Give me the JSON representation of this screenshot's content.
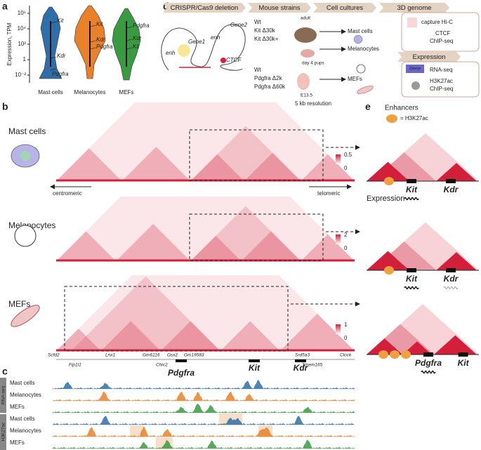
{
  "panel_labels": [
    "a",
    "b",
    "c",
    "d",
    "e"
  ],
  "panel_a": {
    "type": "violin",
    "y_label": "Expression, TPM",
    "log_scale": true,
    "ylim": [
      0.001,
      10000000
    ],
    "yticks": [
      {
        "value": 1000000,
        "label": "10⁶"
      },
      {
        "value": 10000,
        "label": "10⁴"
      },
      {
        "value": 100,
        "label": "10²"
      },
      1,
      {
        "value": 0.01,
        "label": "10⁻²"
      }
    ],
    "groups": [
      {
        "name": "Mast cells",
        "color": "#2f6ea7",
        "genes": [
          "Kit",
          "Kdr",
          "Pdgfra"
        ]
      },
      {
        "name": "Melanocytes",
        "color": "#e8812a",
        "genes": [
          "Kit",
          "Kdr",
          "Pdgfra"
        ]
      },
      {
        "name": "MEFs",
        "color": "#3a9a41",
        "genes": [
          "Pdgfra",
          "Kdr",
          "Kit"
        ]
      }
    ]
  },
  "panel_b": {
    "resolution": "5 kb resolution",
    "color": "#d3203a",
    "samples": [
      {
        "name": "Mast cells",
        "scale_max": 0.5,
        "scale_min": 0
      },
      {
        "name": "Melanocytes",
        "scale_max": 2,
        "scale_min": 0
      },
      {
        "name": "MEFs",
        "scale_max": 1,
        "scale_min": 0
      }
    ],
    "directions": [
      "centromeric",
      "telomeric"
    ],
    "genes": [
      "Scfd2",
      "Fip1l1",
      "Lnx1",
      "Gm6116",
      "Chic2",
      "Gsx2",
      "Gm19583",
      "Srd5a3",
      "Tmem165",
      "Clock"
    ],
    "highlight_genes": [
      "Pdgfra",
      "Kit",
      "Kdr"
    ]
  },
  "panel_c": {
    "assays": [
      "RNA-seq",
      "H3K27ac"
    ],
    "tracks": [
      {
        "cell": "Mast cells",
        "color": "#2f6ea7"
      },
      {
        "cell": "Melanocytes",
        "color": "#e8812a"
      },
      {
        "cell": "MEFs",
        "color": "#3a9a41"
      },
      {
        "cell": "Mast cells",
        "color": "#2f6ea7"
      },
      {
        "cell": "Melanocytes",
        "color": "#e8812a"
      },
      {
        "cell": "MEFs",
        "color": "#3a9a41"
      }
    ]
  },
  "panel_d": {
    "steps": [
      "CRISPR/Cas9 deletion",
      "Mouse strains",
      "Cell cultures",
      "3D genome",
      "Expression"
    ],
    "diagram": [
      "Gene1",
      "Gene2",
      "enh",
      "enh",
      "CTCF"
    ],
    "strains_postnatal": [
      "Wt",
      "Kit Δ30k",
      "Kit Δ30k+"
    ],
    "ages": [
      "adult",
      "day 4 pups",
      "E13.5"
    ],
    "strains_embryonic": [
      "Wt",
      "Pdgfra Δ2k",
      "Pdgfra Δ60k"
    ],
    "cultures": [
      "Mast cells",
      "Melanocytes",
      "MEFs"
    ],
    "genome_assays": [
      "capture Hi-C",
      "CTCF",
      "ChIP-seq"
    ],
    "expression_assays": [
      "Gene",
      "RNA-seq",
      "H3K27ac",
      "ChIP-seq"
    ]
  },
  "panel_e": {
    "legend": [
      "Enhancers",
      "= H3K27ac"
    ],
    "expression": "Expression",
    "models": [
      [
        "Kit",
        "Kdr"
      ],
      [
        "Kit",
        "Kdr"
      ],
      [
        "Pdgfra",
        "Kit"
      ]
    ]
  }
}
